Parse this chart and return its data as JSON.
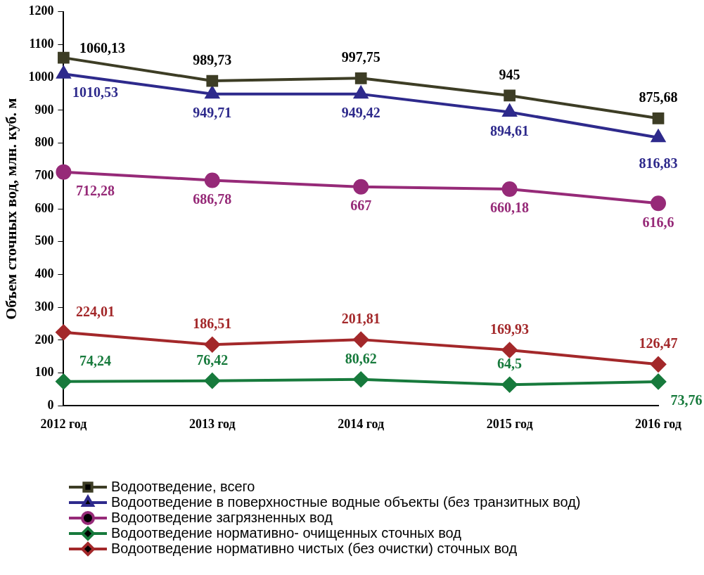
{
  "chart_data": {
    "type": "line",
    "ylabel": "Объем сточных вод, млн. куб. м",
    "categories": [
      "2012 год",
      "2013 год",
      "2014 год",
      "2015 год",
      "2016 год"
    ],
    "ylim": [
      0,
      1200
    ],
    "yticks": [
      0,
      100,
      200,
      300,
      400,
      500,
      600,
      700,
      800,
      900,
      1000,
      1100,
      1200
    ],
    "grid": false,
    "legend": "bottom",
    "line_style": "solid",
    "series": [
      {
        "name": "Водоотведение, всего",
        "color": "#3d3d25",
        "marker": "square",
        "values": [
          1060.13,
          989.73,
          997.75,
          945,
          875.68
        ],
        "value_labels": [
          "1060,13",
          "989,73",
          "997,75",
          "945",
          "875,68"
        ]
      },
      {
        "name": "Водоотведение в поверхностные водные объекты (без транзитных вод)",
        "color": "#2e2a8c",
        "marker": "triangle",
        "values": [
          1010.53,
          949.71,
          949.42,
          894.61,
          816.83
        ],
        "value_labels": [
          "1010,53",
          "949,71",
          "949,42",
          "894,61",
          "816,83"
        ]
      },
      {
        "name": "Водоотведение загрязненных вод",
        "color": "#962a78",
        "marker": "circle",
        "values": [
          712.28,
          686.78,
          667,
          660.18,
          616.6
        ],
        "value_labels": [
          "712,28",
          "686,78",
          "667",
          "660,18",
          "616,6"
        ]
      },
      {
        "name": "Водоотведение нормативно- очищенных сточных вод",
        "color": "#177a3c",
        "marker": "diamond",
        "values": [
          74.24,
          76.42,
          80.62,
          64.5,
          73.76
        ],
        "value_labels": [
          "74,24",
          "76,42",
          "80,62",
          "64,5",
          "73,76"
        ]
      },
      {
        "name": "Водоотведение нормативно чистых (без очистки) сточных вод",
        "color": "#a3282a",
        "marker": "diamond",
        "values": [
          224.01,
          186.51,
          201.81,
          169.93,
          126.47
        ],
        "value_labels": [
          "224,01",
          "186,51",
          "201,81",
          "169,93",
          "126,47"
        ]
      }
    ]
  }
}
